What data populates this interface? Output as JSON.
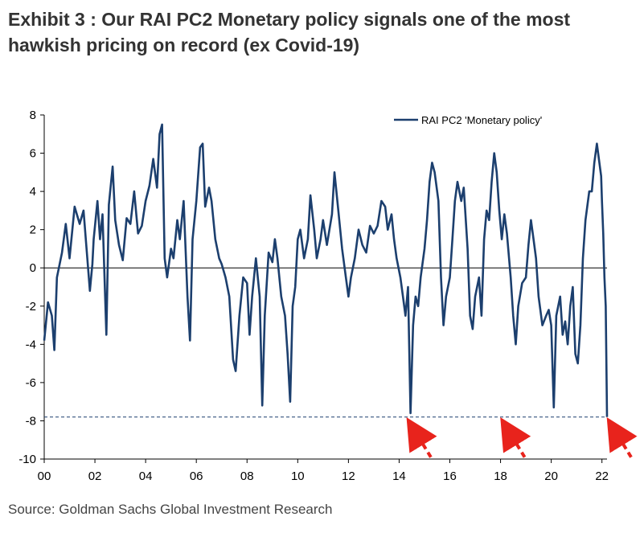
{
  "title": "Exhibit 3 : Our RAI PC2 Monetary policy signals one of the most hawkish pricing on record (ex Covid-19)",
  "source": "Source: Goldman Sachs Global Investment Research",
  "chart_data": {
    "type": "line",
    "title": "Exhibit 3 : Our RAI PC2 Monetary policy signals one of the most hawkish pricing on record (ex Covid-19)",
    "xlabel": "",
    "ylabel": "",
    "xlim": [
      2000,
      2022.2
    ],
    "ylim": [
      -10,
      8
    ],
    "x_ticks": [
      2000,
      2002,
      2004,
      2006,
      2008,
      2010,
      2012,
      2014,
      2016,
      2018,
      2020,
      2022
    ],
    "x_tick_labels": [
      "00",
      "02",
      "04",
      "06",
      "08",
      "10",
      "12",
      "14",
      "16",
      "18",
      "20",
      "22"
    ],
    "y_ticks": [
      -10,
      -8,
      -6,
      -4,
      -2,
      0,
      2,
      4,
      6,
      8
    ],
    "y_tick_labels": [
      "-10",
      "-8",
      "-6",
      "-4",
      "-2",
      "0",
      "2",
      "4",
      "6",
      "8"
    ],
    "grid": false,
    "legend": {
      "position": "top-right",
      "entries": [
        "RAI PC2 'Monetary policy'"
      ]
    },
    "series": [
      {
        "name": "RAI PC2 'Monetary policy'",
        "color": "#1c3f6e",
        "points": [
          [
            2000.0,
            -3.8
          ],
          [
            2000.15,
            -1.8
          ],
          [
            2000.3,
            -2.5
          ],
          [
            2000.4,
            -4.3
          ],
          [
            2000.5,
            -0.5
          ],
          [
            2000.7,
            0.8
          ],
          [
            2000.85,
            2.3
          ],
          [
            2001.0,
            0.5
          ],
          [
            2001.2,
            3.2
          ],
          [
            2001.4,
            2.3
          ],
          [
            2001.55,
            3.0
          ],
          [
            2001.7,
            0.5
          ],
          [
            2001.8,
            -1.2
          ],
          [
            2001.9,
            0.2
          ],
          [
            2001.95,
            1.5
          ],
          [
            2002.1,
            3.5
          ],
          [
            2002.2,
            1.5
          ],
          [
            2002.3,
            2.8
          ],
          [
            2002.45,
            -3.5
          ],
          [
            2002.55,
            3.3
          ],
          [
            2002.7,
            5.3
          ],
          [
            2002.8,
            2.5
          ],
          [
            2002.95,
            1.2
          ],
          [
            2003.1,
            0.4
          ],
          [
            2003.25,
            2.6
          ],
          [
            2003.4,
            2.3
          ],
          [
            2003.55,
            4.0
          ],
          [
            2003.7,
            1.8
          ],
          [
            2003.85,
            2.2
          ],
          [
            2004.0,
            3.5
          ],
          [
            2004.15,
            4.3
          ],
          [
            2004.3,
            5.7
          ],
          [
            2004.45,
            4.2
          ],
          [
            2004.55,
            7.0
          ],
          [
            2004.65,
            7.5
          ],
          [
            2004.75,
            0.5
          ],
          [
            2004.85,
            -0.5
          ],
          [
            2005.0,
            1.0
          ],
          [
            2005.1,
            0.5
          ],
          [
            2005.25,
            2.5
          ],
          [
            2005.35,
            1.5
          ],
          [
            2005.5,
            3.5
          ],
          [
            2005.65,
            -1.5
          ],
          [
            2005.75,
            -3.8
          ],
          [
            2005.85,
            1.5
          ],
          [
            2006.0,
            3.5
          ],
          [
            2006.15,
            6.3
          ],
          [
            2006.25,
            6.5
          ],
          [
            2006.35,
            3.2
          ],
          [
            2006.5,
            4.2
          ],
          [
            2006.6,
            3.5
          ],
          [
            2006.75,
            1.5
          ],
          [
            2006.9,
            0.5
          ],
          [
            2007.0,
            0.2
          ],
          [
            2007.15,
            -0.5
          ],
          [
            2007.3,
            -1.5
          ],
          [
            2007.45,
            -4.8
          ],
          [
            2007.55,
            -5.4
          ],
          [
            2007.7,
            -2.5
          ],
          [
            2007.85,
            -0.5
          ],
          [
            2008.0,
            -0.8
          ],
          [
            2008.1,
            -3.5
          ],
          [
            2008.2,
            -1.5
          ],
          [
            2008.35,
            0.5
          ],
          [
            2008.5,
            -1.5
          ],
          [
            2008.6,
            -7.2
          ],
          [
            2008.7,
            -2.5
          ],
          [
            2008.85,
            0.8
          ],
          [
            2009.0,
            0.3
          ],
          [
            2009.1,
            1.5
          ],
          [
            2009.2,
            0.5
          ],
          [
            2009.35,
            -1.5
          ],
          [
            2009.5,
            -2.5
          ],
          [
            2009.6,
            -4.5
          ],
          [
            2009.7,
            -7.0
          ],
          [
            2009.8,
            -2.0
          ],
          [
            2009.9,
            -1.0
          ],
          [
            2010.0,
            1.5
          ],
          [
            2010.1,
            2.0
          ],
          [
            2010.25,
            0.5
          ],
          [
            2010.4,
            1.5
          ],
          [
            2010.5,
            3.8
          ],
          [
            2010.65,
            2.0
          ],
          [
            2010.75,
            0.5
          ],
          [
            2010.9,
            1.5
          ],
          [
            2011.0,
            2.5
          ],
          [
            2011.15,
            1.2
          ],
          [
            2011.35,
            2.8
          ],
          [
            2011.45,
            5.0
          ],
          [
            2011.6,
            3.0
          ],
          [
            2011.75,
            1.0
          ],
          [
            2011.9,
            -0.5
          ],
          [
            2012.0,
            -1.5
          ],
          [
            2012.1,
            -0.5
          ],
          [
            2012.25,
            0.5
          ],
          [
            2012.4,
            2.0
          ],
          [
            2012.55,
            1.2
          ],
          [
            2012.7,
            0.8
          ],
          [
            2012.85,
            2.2
          ],
          [
            2013.0,
            1.8
          ],
          [
            2013.15,
            2.2
          ],
          [
            2013.3,
            3.5
          ],
          [
            2013.45,
            3.2
          ],
          [
            2013.55,
            2.0
          ],
          [
            2013.7,
            2.8
          ],
          [
            2013.8,
            1.5
          ],
          [
            2013.9,
            0.5
          ],
          [
            2014.05,
            -0.5
          ],
          [
            2014.15,
            -1.5
          ],
          [
            2014.25,
            -2.5
          ],
          [
            2014.35,
            -1.0
          ],
          [
            2014.45,
            -7.6
          ],
          [
            2014.55,
            -3.0
          ],
          [
            2014.65,
            -1.5
          ],
          [
            2014.75,
            -2.0
          ],
          [
            2014.85,
            -0.5
          ],
          [
            2015.0,
            1.0
          ],
          [
            2015.1,
            2.5
          ],
          [
            2015.2,
            4.5
          ],
          [
            2015.3,
            5.5
          ],
          [
            2015.4,
            5.0
          ],
          [
            2015.55,
            3.5
          ],
          [
            2015.65,
            -0.5
          ],
          [
            2015.75,
            -3.0
          ],
          [
            2015.85,
            -1.5
          ],
          [
            2016.0,
            -0.5
          ],
          [
            2016.1,
            1.5
          ],
          [
            2016.2,
            3.5
          ],
          [
            2016.3,
            4.5
          ],
          [
            2016.45,
            3.5
          ],
          [
            2016.55,
            4.2
          ],
          [
            2016.7,
            1.0
          ],
          [
            2016.8,
            -2.5
          ],
          [
            2016.9,
            -3.2
          ],
          [
            2017.0,
            -1.5
          ],
          [
            2017.15,
            -0.5
          ],
          [
            2017.25,
            -2.5
          ],
          [
            2017.35,
            1.5
          ],
          [
            2017.45,
            3.0
          ],
          [
            2017.55,
            2.5
          ],
          [
            2017.65,
            4.5
          ],
          [
            2017.75,
            6.0
          ],
          [
            2017.85,
            5.0
          ],
          [
            2017.95,
            3.0
          ],
          [
            2018.05,
            1.5
          ],
          [
            2018.15,
            2.8
          ],
          [
            2018.25,
            1.8
          ],
          [
            2018.4,
            -0.5
          ],
          [
            2018.5,
            -2.5
          ],
          [
            2018.6,
            -4.0
          ],
          [
            2018.7,
            -2.0
          ],
          [
            2018.85,
            -0.8
          ],
          [
            2019.0,
            -0.5
          ],
          [
            2019.1,
            1.2
          ],
          [
            2019.2,
            2.5
          ],
          [
            2019.3,
            1.5
          ],
          [
            2019.4,
            0.5
          ],
          [
            2019.5,
            -1.5
          ],
          [
            2019.65,
            -3.0
          ],
          [
            2019.8,
            -2.5
          ],
          [
            2019.9,
            -2.2
          ],
          [
            2020.0,
            -3.0
          ],
          [
            2020.1,
            -7.3
          ],
          [
            2020.2,
            -2.5
          ],
          [
            2020.35,
            -1.5
          ],
          [
            2020.45,
            -3.5
          ],
          [
            2020.55,
            -2.8
          ],
          [
            2020.65,
            -4.0
          ],
          [
            2020.75,
            -2.0
          ],
          [
            2020.85,
            -1.0
          ],
          [
            2020.95,
            -4.5
          ],
          [
            2021.05,
            -5.0
          ],
          [
            2021.15,
            -3.0
          ],
          [
            2021.25,
            0.5
          ],
          [
            2021.35,
            2.5
          ],
          [
            2021.5,
            4.0
          ],
          [
            2021.6,
            4.0
          ],
          [
            2021.7,
            5.5
          ],
          [
            2021.8,
            6.5
          ],
          [
            2021.9,
            5.5
          ],
          [
            2021.97,
            4.8
          ],
          [
            2022.0,
            3.5
          ],
          [
            2022.05,
            1.8
          ],
          [
            2022.1,
            -0.5
          ],
          [
            2022.15,
            -2.0
          ],
          [
            2022.2,
            -7.8
          ]
        ]
      }
    ],
    "reference_line": {
      "y": -7.8,
      "style": "dashed"
    },
    "annotations": [
      {
        "type": "arrow",
        "x": 2014.3,
        "y": -7.8,
        "color": "#e8231c"
      },
      {
        "type": "arrow",
        "x": 2018.0,
        "y": -7.8,
        "color": "#e8231c"
      },
      {
        "type": "arrow",
        "x": 2022.2,
        "y": -7.8,
        "color": "#e8231c"
      }
    ]
  }
}
